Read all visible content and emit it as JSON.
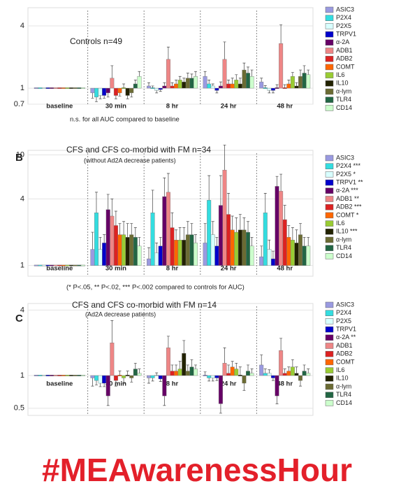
{
  "chart_data": [
    {
      "type": "bar",
      "title": "Controls n=49",
      "note": "n.s. for all AUC compared to baseline",
      "categories": [
        "baseline",
        "30 min",
        "8 hr",
        "24 hr",
        "48 hr"
      ],
      "log": true,
      "grid": true,
      "ylim": [
        0.7,
        6
      ],
      "yticks": [
        0.7,
        1,
        4
      ],
      "series": [
        {
          "name": "ASIC3",
          "color": "#9a9ae0",
          "values": [
            1,
            0.9,
            1.05,
            1.3,
            1.15
          ],
          "errors": [
            0,
            0.1,
            0.08,
            0.15,
            0.1
          ]
        },
        {
          "name": "P2X4",
          "color": "#33dde0",
          "values": [
            1,
            0.82,
            1.0,
            1.1,
            1.0
          ],
          "errors": [
            0,
            0.08,
            0.05,
            0.1,
            0.06
          ]
        },
        {
          "name": "P2X5",
          "color": "#d8ffff",
          "values": [
            1,
            0.85,
            0.95,
            1.05,
            0.95
          ],
          "errors": [
            0,
            0.06,
            0.05,
            0.05,
            0.05
          ]
        },
        {
          "name": "TRPV1",
          "color": "#0000cc",
          "values": [
            1,
            0.85,
            0.97,
            0.95,
            0.95
          ],
          "errors": [
            0,
            0.05,
            0.04,
            0.05,
            0.05
          ]
        },
        {
          "name": "α-2A",
          "color": "#660066",
          "values": [
            1,
            0.9,
            1.05,
            1.05,
            1.0
          ],
          "errors": [
            0,
            0.08,
            0.08,
            0.1,
            0.08
          ]
        },
        {
          "name": "ADB1",
          "color": "#ee8686",
          "values": [
            1,
            1.25,
            1.9,
            1.9,
            2.7
          ],
          "errors": [
            0,
            0.4,
            0.6,
            0.9,
            1.4
          ]
        },
        {
          "name": "ADB2",
          "color": "#dd2222",
          "values": [
            1,
            0.85,
            1.05,
            1.1,
            1.0
          ],
          "errors": [
            0,
            0.06,
            0.08,
            0.1,
            0.08
          ]
        },
        {
          "name": "COMT",
          "color": "#ff6600",
          "values": [
            1,
            0.9,
            1.1,
            1.1,
            1.1
          ],
          "errors": [
            0,
            0.06,
            0.1,
            0.15,
            0.1
          ]
        },
        {
          "name": "IL6",
          "color": "#99cc33",
          "values": [
            1,
            1.0,
            1.2,
            1.2,
            1.3
          ],
          "errors": [
            0,
            0.1,
            0.1,
            0.15,
            0.12
          ]
        },
        {
          "name": "IL10",
          "color": "#222200",
          "values": [
            1,
            0.85,
            1.15,
            1.1,
            1.05
          ],
          "errors": [
            0,
            0.06,
            0.1,
            0.15,
            0.08
          ]
        },
        {
          "name": "α-lym",
          "color": "#6b6b33",
          "values": [
            1,
            0.9,
            1.25,
            1.5,
            1.3
          ],
          "errors": [
            0,
            0.08,
            0.15,
            0.25,
            0.2
          ]
        },
        {
          "name": "TLR4",
          "color": "#226644",
          "values": [
            1,
            1.1,
            1.25,
            1.4,
            1.4
          ],
          "errors": [
            0,
            0.1,
            0.12,
            0.2,
            0.25
          ]
        },
        {
          "name": "CD14",
          "color": "#ccffcc",
          "values": [
            1,
            1.3,
            1.3,
            1.3,
            1.35
          ],
          "errors": [
            0,
            0.15,
            0.15,
            0.2,
            0.15
          ]
        }
      ]
    },
    {
      "type": "bar",
      "panel": "B",
      "title": "CFS and CFS co-morbid with FM n=34",
      "subtitle": "(without Ad2A decrease patients)",
      "note": "(* P<.05, ** P<.02, *** P<.002 compared to controls for AUC)",
      "categories": [
        "baseline",
        "30 min",
        "8 hr",
        "24 hr",
        "48 hr"
      ],
      "log": true,
      "grid": true,
      "ylim": [
        0.8,
        11
      ],
      "yticks": [
        1,
        4,
        10
      ],
      "series": [
        {
          "name": "ASIC3",
          "color": "#9a9ae0",
          "values": [
            1,
            1.4,
            1.15,
            1.6,
            1.2
          ],
          "errors": [
            0,
            0.6,
            0.3,
            0.8,
            0.3
          ]
        },
        {
          "name": "P2X4 ***",
          "color": "#33dde0",
          "values": [
            1,
            3.0,
            3.0,
            3.9,
            3.0
          ],
          "errors": [
            0,
            1.6,
            1.8,
            2.6,
            1.5
          ]
        },
        {
          "name": "P2X5 *",
          "color": "#d8ffff",
          "values": [
            1,
            1.4,
            1.3,
            1.9,
            1.4
          ],
          "errors": [
            0,
            0.4,
            0.3,
            0.6,
            0.3
          ]
        },
        {
          "name": "TRPV1 **",
          "color": "#0000cc",
          "values": [
            1,
            1.6,
            1.5,
            1.5,
            1.15
          ],
          "errors": [
            0,
            0.3,
            0.3,
            0.3,
            0.2
          ]
        },
        {
          "name": "α-2A ***",
          "color": "#660066",
          "values": [
            1,
            3.2,
            4.2,
            3.5,
            5.2
          ],
          "errors": [
            0,
            1.2,
            2.0,
            3.0,
            1.2
          ]
        },
        {
          "name": "ADB1 **",
          "color": "#ee8686",
          "values": [
            1,
            2.8,
            4.6,
            7.3,
            4.7
          ],
          "errors": [
            0,
            1.2,
            2.2,
            5.0,
            2.0
          ]
        },
        {
          "name": "ADB2 ***",
          "color": "#dd2222",
          "values": [
            1,
            2.3,
            2.2,
            2.9,
            2.6
          ],
          "errors": [
            0,
            0.8,
            0.8,
            1.6,
            0.9
          ]
        },
        {
          "name": "COMT *",
          "color": "#ff6600",
          "values": [
            1,
            1.9,
            1.7,
            2.1,
            1.8
          ],
          "errors": [
            0,
            0.5,
            0.4,
            0.7,
            0.5
          ]
        },
        {
          "name": "IL6",
          "color": "#99cc33",
          "values": [
            1,
            1.9,
            1.7,
            2.0,
            1.7
          ],
          "errors": [
            0,
            0.6,
            0.5,
            0.7,
            0.5
          ]
        },
        {
          "name": "IL10 ***",
          "color": "#222200",
          "values": [
            1,
            1.8,
            1.7,
            2.1,
            1.6
          ],
          "errors": [
            0,
            0.6,
            0.5,
            0.8,
            0.5
          ]
        },
        {
          "name": "α-lym",
          "color": "#6b6b33",
          "values": [
            1,
            1.9,
            1.9,
            2.1,
            1.9
          ],
          "errors": [
            0,
            0.5,
            0.6,
            0.6,
            0.5
          ]
        },
        {
          "name": "TLR4",
          "color": "#226644",
          "values": [
            1,
            1.8,
            1.9,
            2.0,
            1.5
          ],
          "errors": [
            0,
            0.4,
            0.5,
            0.5,
            0.3
          ]
        },
        {
          "name": "CD14",
          "color": "#ccffcc",
          "values": [
            1,
            1.5,
            1.6,
            1.5,
            1.5
          ],
          "errors": [
            0,
            0.3,
            0.3,
            0.3,
            0.3
          ]
        }
      ]
    },
    {
      "type": "bar",
      "panel": "C",
      "title": "CFS and CFS co-morbid with FM n=14",
      "subtitle": "(Ad2A decrease patients)",
      "categories": [
        "baseline",
        "30 min",
        "8 hr",
        "24 hr",
        "48 hr"
      ],
      "log": true,
      "grid": true,
      "ylim": [
        0.43,
        4.6
      ],
      "yticks": [
        0.5,
        1,
        4
      ],
      "series": [
        {
          "name": "ASIC3",
          "color": "#9a9ae0",
          "values": [
            1,
            0.95,
            0.95,
            1.0,
            1.25
          ],
          "errors": [
            0,
            0.15,
            0.1,
            0.08,
            0.3
          ]
        },
        {
          "name": "P2X4",
          "color": "#33dde0",
          "values": [
            1,
            0.9,
            0.95,
            0.95,
            1.05
          ],
          "errors": [
            0,
            0.08,
            0.06,
            0.06,
            0.1
          ]
        },
        {
          "name": "P2X5",
          "color": "#d8ffff",
          "values": [
            1,
            0.85,
            1.0,
            0.95,
            1.05
          ],
          "errors": [
            0,
            0.06,
            0.06,
            0.06,
            0.08
          ]
        },
        {
          "name": "TRPV1",
          "color": "#0000cc",
          "values": [
            1,
            0.85,
            0.93,
            0.95,
            0.95
          ],
          "errors": [
            0,
            0.06,
            0.05,
            0.05,
            0.05
          ]
        },
        {
          "name": "α-2A **",
          "color": "#660066",
          "values": [
            1,
            0.65,
            0.65,
            0.55,
            0.65
          ],
          "errors": [
            0,
            0.12,
            0.12,
            0.1,
            0.1
          ]
        },
        {
          "name": "ADB1",
          "color": "#ee8686",
          "values": [
            1,
            2.0,
            1.8,
            1.3,
            1.7
          ],
          "errors": [
            0,
            1.2,
            0.5,
            0.5,
            0.5
          ]
        },
        {
          "name": "ADB2",
          "color": "#dd2222",
          "values": [
            1,
            0.9,
            1.1,
            1.05,
            1.05
          ],
          "errors": [
            0,
            0.1,
            0.15,
            0.2,
            0.1
          ]
        },
        {
          "name": "COMT",
          "color": "#ff6600",
          "values": [
            1,
            1.0,
            1.1,
            1.2,
            1.1
          ],
          "errors": [
            0,
            0.1,
            0.15,
            0.15,
            0.1
          ]
        },
        {
          "name": "IL6",
          "color": "#99cc33",
          "values": [
            1,
            0.95,
            1.15,
            1.15,
            1.2
          ],
          "errors": [
            0,
            0.1,
            0.2,
            0.15,
            0.2
          ]
        },
        {
          "name": "IL10",
          "color": "#222200",
          "values": [
            1,
            1.0,
            1.6,
            1.0,
            1.05
          ],
          "errors": [
            0,
            0.1,
            0.5,
            0.2,
            0.15
          ]
        },
        {
          "name": "α-lym",
          "color": "#6b6b33",
          "values": [
            1,
            0.95,
            1.1,
            0.85,
            0.9
          ],
          "errors": [
            0,
            0.08,
            0.15,
            0.12,
            0.1
          ]
        },
        {
          "name": "TLR4",
          "color": "#226644",
          "values": [
            1,
            1.15,
            1.2,
            1.1,
            1.1
          ],
          "errors": [
            0,
            0.15,
            0.2,
            0.15,
            0.15
          ]
        },
        {
          "name": "CD14",
          "color": "#ccffcc",
          "values": [
            1,
            1.05,
            1.15,
            1.05,
            1.05
          ],
          "errors": [
            0,
            0.1,
            0.1,
            0.1,
            0.1
          ]
        }
      ]
    }
  ],
  "hashtag": "#MEAwarenessHour"
}
